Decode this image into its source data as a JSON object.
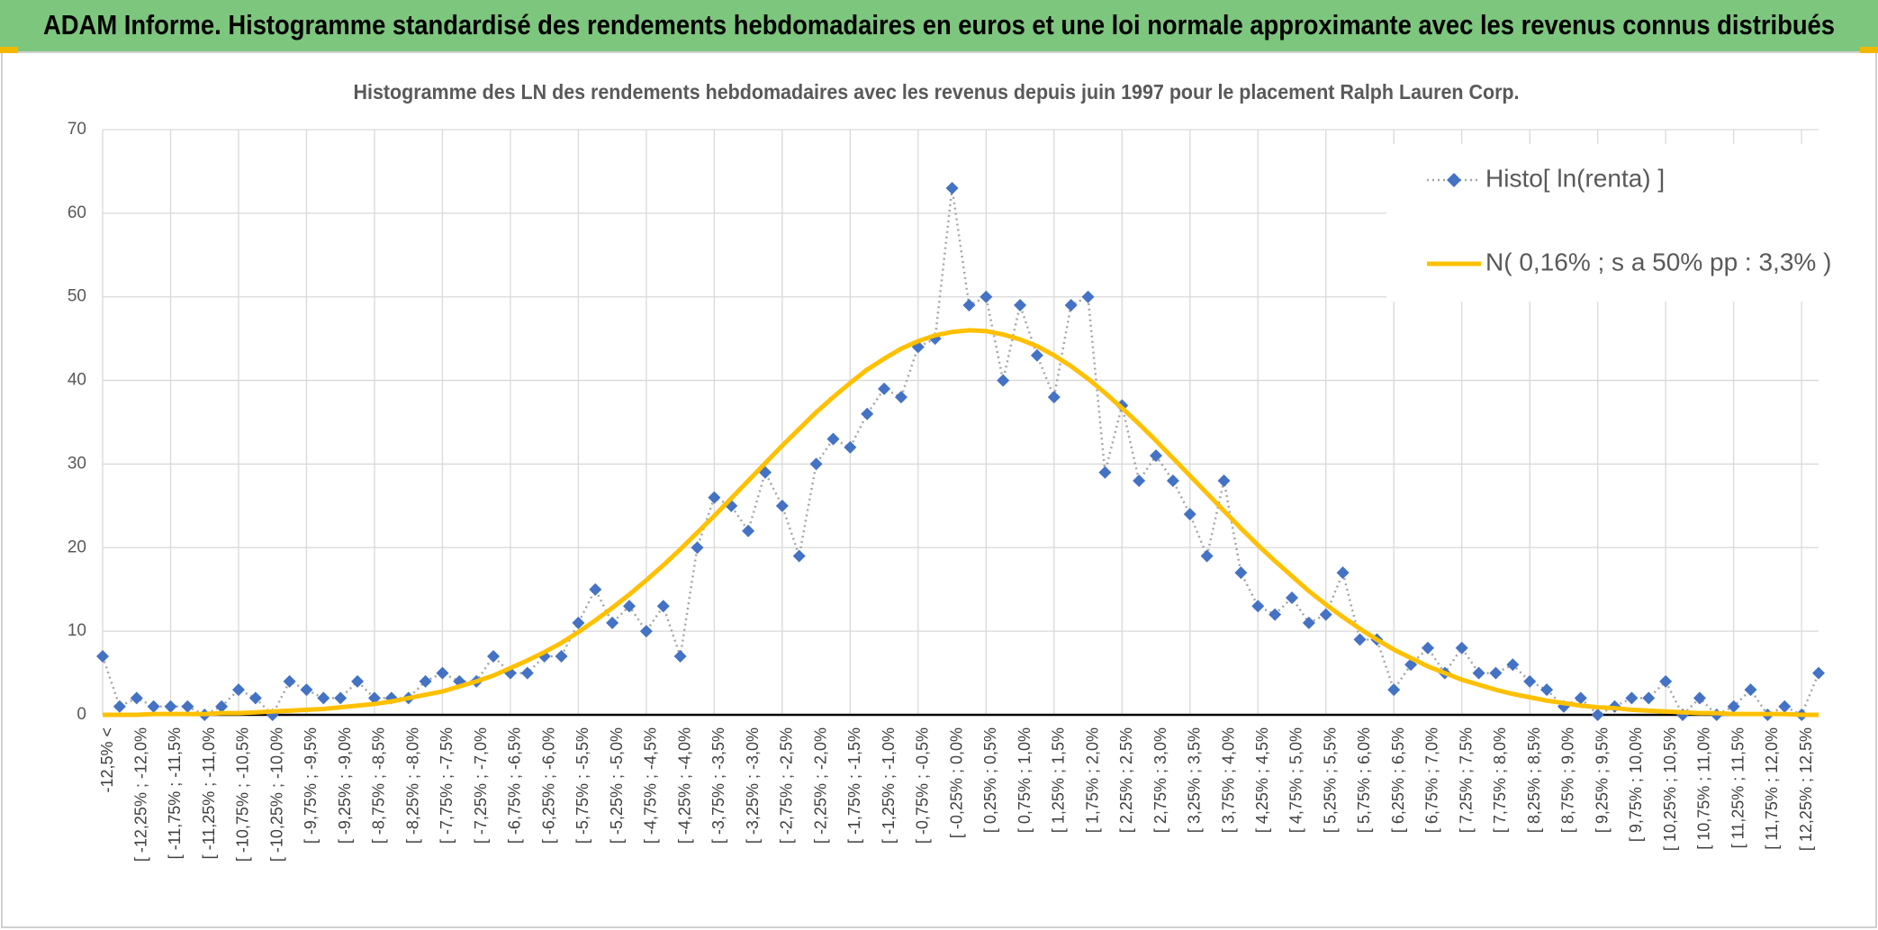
{
  "page_title": "ADAM Informe. Histogramme standardisé des rendements hebdomadaires en euros et une loi normale approximante avec les revenus connus distribués",
  "chart_data": {
    "type": "line",
    "title": "Histogramme des LN des rendements hebdomadaires avec les revenus depuis juin 1997 pour le placement Ralph Lauren Corp.",
    "categories": [
      "-12,5% <",
      null,
      "[ -12,25% ; -12,0%",
      null,
      "[ -11,75% ; -11,5%",
      null,
      "[ -11,25% ; -11,0%",
      null,
      "[ -10,75% ; -10,5%",
      null,
      "[ -10,25% ; -10,0%",
      null,
      "[ -9,75% ; -9,5%",
      null,
      "[ -9,25% ; -9,0%",
      null,
      "[ -8,75% ; -8,5%",
      null,
      "[ -8,25% ; -8,0%",
      null,
      "[ -7,75% ; -7,5%",
      null,
      "[ -7,25% ; -7,0%",
      null,
      "[ -6,75% ; -6,5%",
      null,
      "[ -6,25% ; -6,0%",
      null,
      "[ -5,75% ; -5,5%",
      null,
      "[ -5,25% ; -5,0%",
      null,
      "[ -4,75% ; -4,5%",
      null,
      "[ -4,25% ; -4,0%",
      null,
      "[ -3,75% ; -3,5%",
      null,
      "[ -3,25% ; -3,0%",
      null,
      "[ -2,75% ; -2,5%",
      null,
      "[ -2,25% ; -2,0%",
      null,
      "[ -1,75% ; -1,5%",
      null,
      "[ -1,25% ; -1,0%",
      null,
      "[ -0,75% ; -0,5%",
      null,
      "[ -0,25% ; 0,0%",
      null,
      "[ 0,25% ; 0,5%",
      null,
      "[ 0,75% ; 1,0%",
      null,
      "[ 1,25% ; 1,5%",
      null,
      "[ 1,75% ; 2,0%",
      null,
      "[ 2,25% ; 2,5%",
      null,
      "[ 2,75% ; 3,0%",
      null,
      "[ 3,25% ; 3,5%",
      null,
      "[ 3,75% ; 4,0%",
      null,
      "[ 4,25% ; 4,5%",
      null,
      "[ 4,75% ; 5,0%",
      null,
      "[ 5,25% ; 5,5%",
      null,
      "[ 5,75% ; 6,0%",
      null,
      "[ 6,25% ; 6,5%",
      null,
      "[ 6,75% ; 7,0%",
      null,
      "[ 7,25% ; 7,5%",
      null,
      "[ 7,75% ; 8,0%",
      null,
      "[ 8,25% ; 8,5%",
      null,
      "[ 8,75% ; 9,0%",
      null,
      "[ 9,25% ; 9,5%",
      null,
      "[ 9,75% ; 10,0%",
      null,
      "[ 10,25% ; 10,5%",
      null,
      "[ 10,75% ; 11,0%",
      null,
      "[ 11,25% ; 11,5%",
      null,
      "[ 11,75% ; 12,0%",
      null,
      "[ 12,25% ; 12,5%",
      null
    ],
    "series": [
      {
        "name": "Histo[ ln(renta) ]",
        "color": "#4472c4",
        "line_color": "#a5a5a5",
        "values": [
          7,
          1,
          2,
          1,
          1,
          1,
          0,
          1,
          3,
          2,
          0,
          4,
          3,
          2,
          2,
          4,
          2,
          2,
          2,
          4,
          5,
          4,
          4,
          7,
          5,
          5,
          7,
          7,
          11,
          15,
          11,
          13,
          10,
          13,
          7,
          20,
          26,
          25,
          22,
          29,
          25,
          19,
          30,
          33,
          32,
          36,
          39,
          38,
          44,
          45,
          63,
          49,
          50,
          40,
          49,
          43,
          38,
          49,
          50,
          29,
          37,
          28,
          31,
          28,
          24,
          19,
          28,
          17,
          13,
          12,
          14,
          11,
          12,
          17,
          9,
          9,
          3,
          6,
          8,
          5,
          8,
          5,
          5,
          6,
          4,
          3,
          1,
          2,
          0,
          1,
          2,
          2,
          4,
          0,
          2,
          0,
          1,
          3,
          0,
          1,
          0,
          5
        ]
      },
      {
        "name": "N( 0,16% ; s a 50% pp : 3,3% )",
        "color": "#ffc000",
        "values": [
          0.0,
          0.0,
          0.0,
          0.1,
          0.1,
          0.1,
          0.1,
          0.2,
          0.2,
          0.3,
          0.4,
          0.5,
          0.6,
          0.7,
          0.9,
          1.1,
          1.3,
          1.6,
          2.0,
          2.4,
          2.8,
          3.4,
          4.0,
          4.7,
          5.6,
          6.5,
          7.5,
          8.6,
          9.9,
          11.3,
          12.8,
          14.4,
          16.1,
          17.9,
          19.8,
          21.8,
          23.8,
          25.9,
          28.0,
          30.1,
          32.2,
          34.2,
          36.2,
          38.0,
          39.7,
          41.3,
          42.6,
          43.8,
          44.7,
          45.4,
          45.8,
          46.0,
          45.9,
          45.5,
          44.9,
          44.1,
          43.0,
          41.7,
          40.2,
          38.5,
          36.7,
          34.8,
          32.8,
          30.7,
          28.6,
          26.5,
          24.4,
          22.3,
          20.3,
          18.4,
          16.6,
          14.8,
          13.2,
          11.7,
          10.3,
          9.0,
          7.8,
          6.8,
          5.8,
          5.0,
          4.2,
          3.6,
          3.0,
          2.5,
          2.1,
          1.7,
          1.4,
          1.1,
          0.9,
          0.8,
          0.6,
          0.5,
          0.4,
          0.3,
          0.2,
          0.2,
          0.1,
          0.1,
          0.1,
          0.1,
          0.0,
          0.0
        ]
      }
    ],
    "ylim": [
      0,
      70
    ],
    "yticks": [
      0,
      10,
      20,
      30,
      40,
      50,
      60,
      70
    ],
    "grid": true,
    "legend": "upper right"
  }
}
